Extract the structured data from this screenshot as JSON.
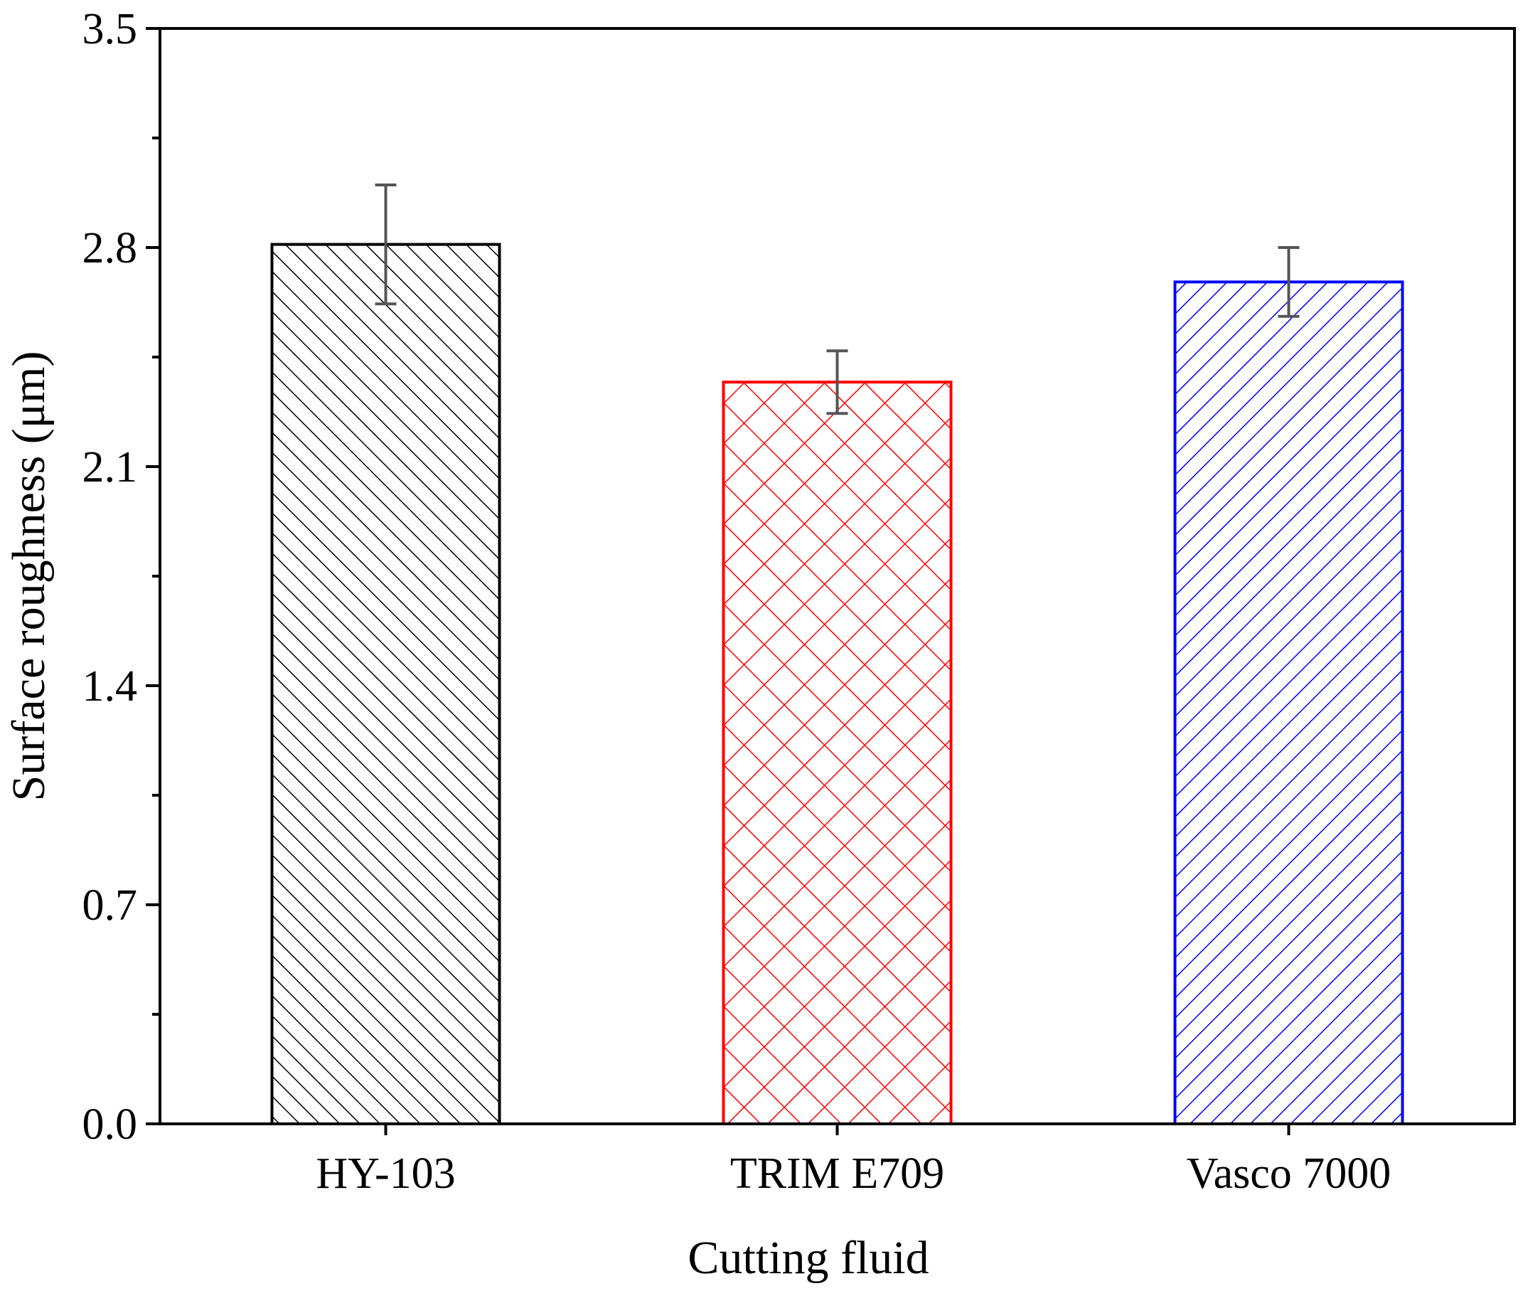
{
  "chart_data": {
    "type": "bar",
    "xlabel": "Cutting fluid",
    "ylabel": "Surface roughness  (μm)",
    "ylim": [
      0,
      3.5
    ],
    "yticks": [
      "0.0",
      "0.7",
      "1.4",
      "2.1",
      "2.8",
      "3.5"
    ],
    "categories": [
      "HY-103",
      "TRIM E709",
      "Vasco 7000"
    ],
    "values": [
      2.81,
      2.37,
      2.69
    ],
    "errors": [
      0.19,
      0.1,
      0.11
    ],
    "colors": [
      "#000000",
      "#ff0000",
      "#0000ff"
    ],
    "error_bar_color": "#555555",
    "patterns": [
      "forward-diagonal",
      "cross-hatch",
      "back-diagonal"
    ],
    "grid": false,
    "legend": "none"
  }
}
